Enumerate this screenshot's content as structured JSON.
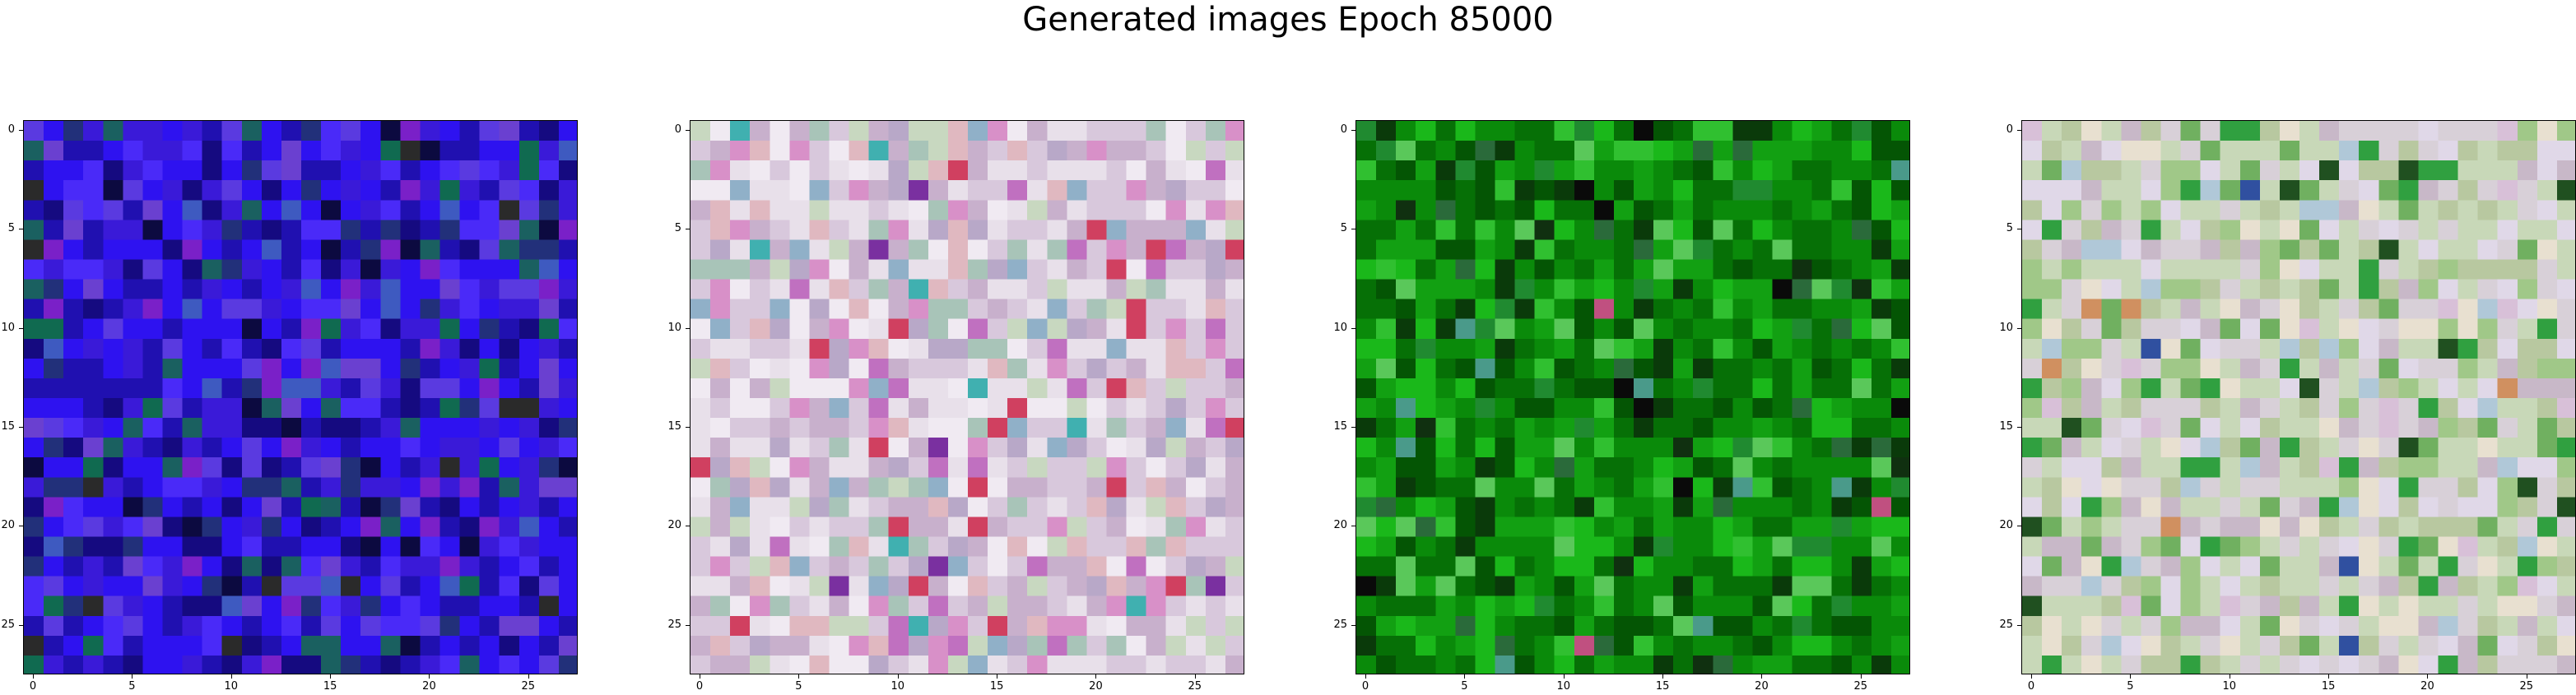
{
  "figure": {
    "title": "Generated images Epoch 85000"
  },
  "grid_size": 28,
  "axis": {
    "ticks": [
      "0",
      "5",
      "10",
      "15",
      "20",
      "25"
    ],
    "tick_values": [
      0,
      5,
      10,
      15,
      20,
      25
    ]
  },
  "panels": [
    {
      "name": "generated-image-1",
      "palette": [
        "#2e12f0",
        "#3a1ad8",
        "#2010b0",
        "#150a80",
        "#4a2af8",
        "#5a3ae0",
        "#22307a",
        "#1a6060",
        "#0c0a40",
        "#6a40d0",
        "#7a20c8",
        "#3e5ac0",
        "#106a50",
        "#2a2a2a"
      ],
      "weights": [
        22,
        14,
        14,
        10,
        8,
        6,
        5,
        4,
        4,
        4,
        3,
        3,
        2,
        1
      ]
    },
    {
      "name": "generated-image-2",
      "palette": [
        "#d8c8dc",
        "#e8e0ea",
        "#c8b0cc",
        "#f0eaf2",
        "#a8c4b8",
        "#d890c8",
        "#b8a8c8",
        "#c8d8c0",
        "#e0b8c0",
        "#90b0c8",
        "#c070c0",
        "#40b0b0",
        "#d04060",
        "#7a30a0"
      ],
      "weights": [
        20,
        16,
        12,
        10,
        7,
        6,
        6,
        6,
        5,
        4,
        3,
        2,
        2,
        1
      ]
    },
    {
      "name": "generated-image-3",
      "palette": [
        "#0a8a0a",
        "#067006",
        "#12a012",
        "#1ab81a",
        "#045504",
        "#0a3a0a",
        "#30c030",
        "#208a30",
        "#5ac85a",
        "#2a6a3a",
        "#c05080",
        "#4a9a8a",
        "#103010",
        "#0a0a0a"
      ],
      "weights": [
        22,
        18,
        14,
        10,
        10,
        6,
        5,
        4,
        4,
        3,
        1,
        1,
        1,
        1
      ]
    },
    {
      "name": "generated-image-4",
      "palette": [
        "#c8d8b8",
        "#d8d0d8",
        "#b8c8a0",
        "#e0d8e8",
        "#a0c888",
        "#c8b8c8",
        "#e8e0d0",
        "#70b060",
        "#30a040",
        "#d8c0d8",
        "#b0c8d8",
        "#205020",
        "#d09060",
        "#3050a0"
      ],
      "weights": [
        18,
        16,
        12,
        10,
        8,
        8,
        6,
        6,
        5,
        4,
        3,
        2,
        1,
        1
      ]
    }
  ]
}
